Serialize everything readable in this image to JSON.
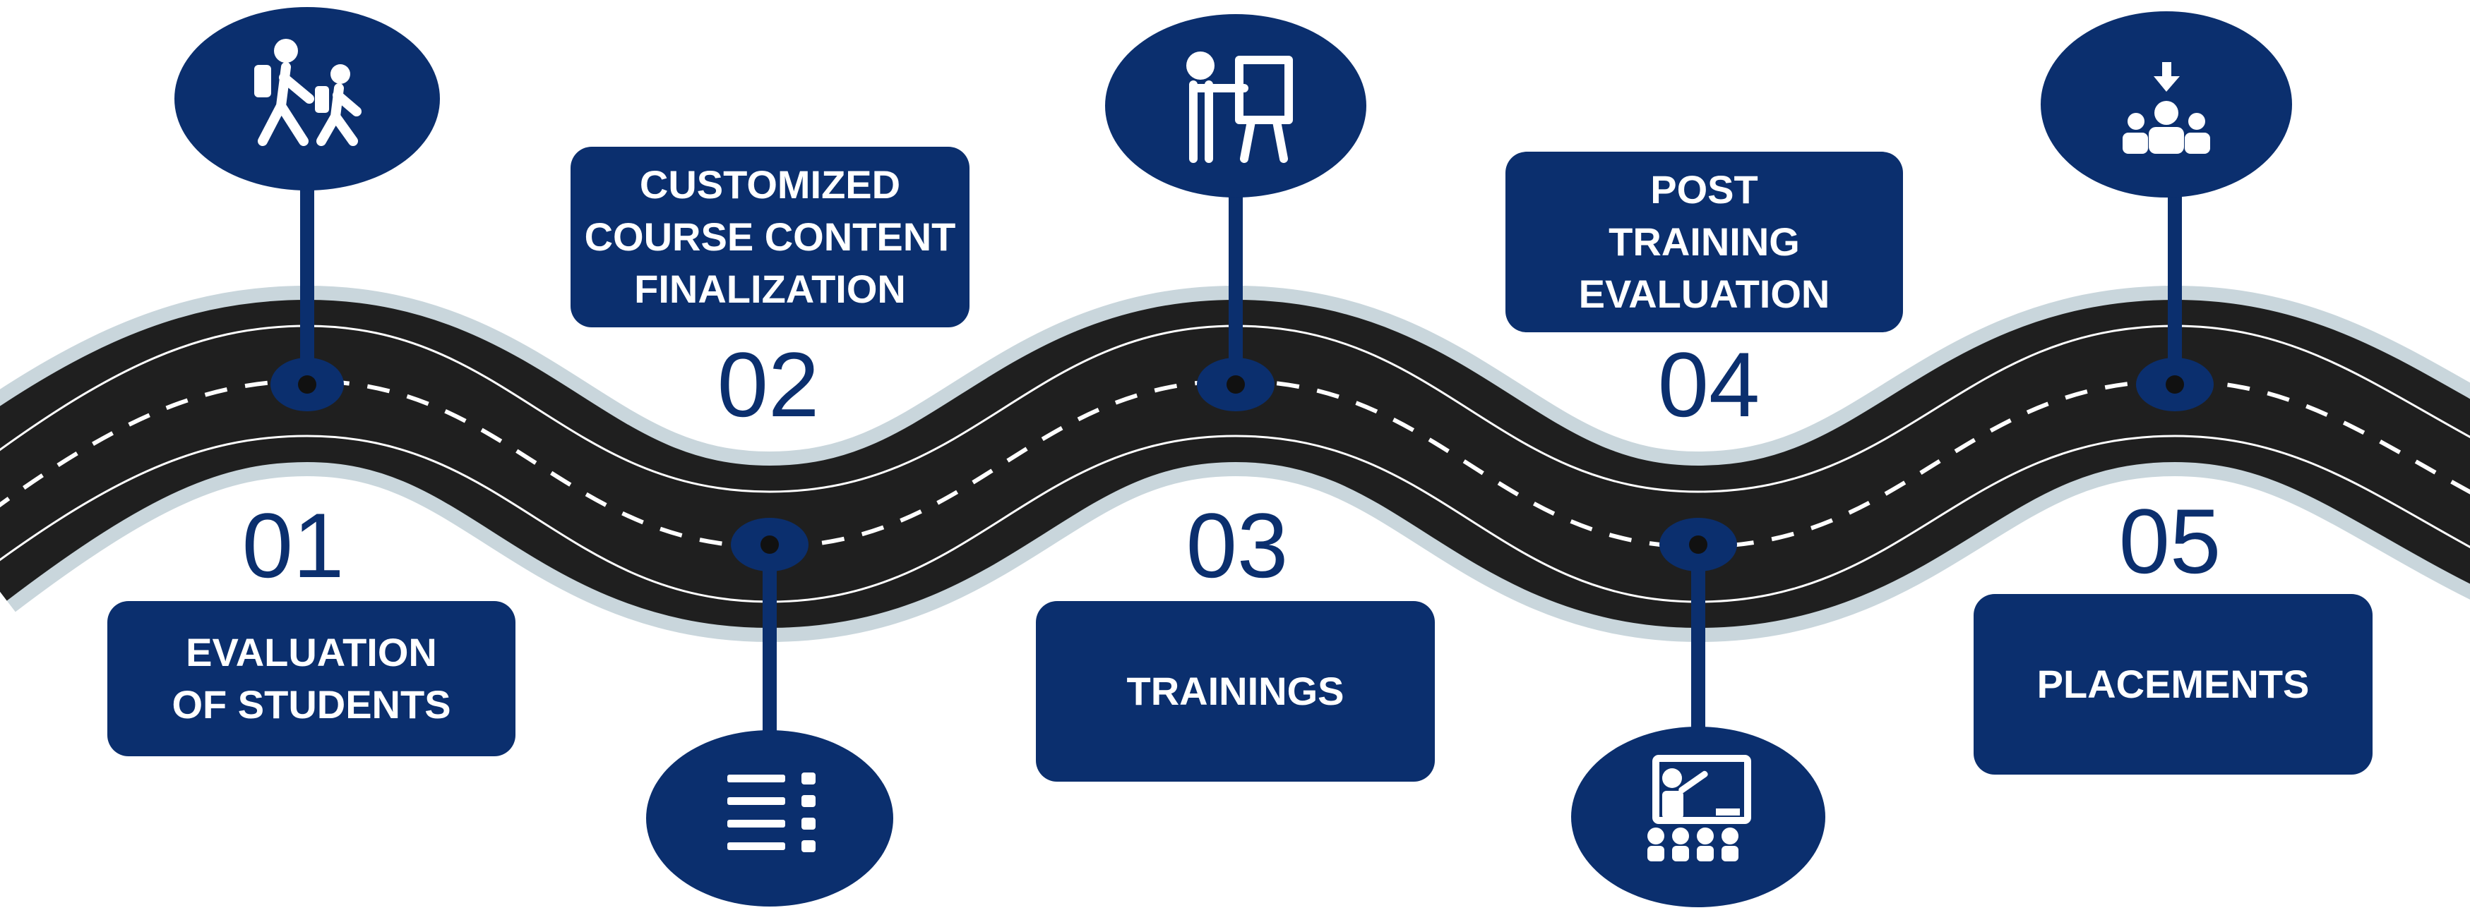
{
  "steps": [
    {
      "number": "01",
      "label": "EVALUATION\nOF STUDENTS",
      "icon": "walking-students-icon"
    },
    {
      "number": "02",
      "label": "CUSTOMIZED\nCOURSE CONTENT\nFINALIZATION",
      "icon": "list-icon"
    },
    {
      "number": "03",
      "label": "TRAININGS",
      "icon": "presentation-board-icon"
    },
    {
      "number": "04",
      "label": "POST\nTRAINING\nEVALUATION",
      "icon": "classroom-icon"
    },
    {
      "number": "05",
      "label": "PLACEMENTS",
      "icon": "placement-group-icon"
    }
  ],
  "colors": {
    "primary": "#0b2f6e",
    "road": "#1f1f1f",
    "road_shadow": "#c9d6dc",
    "text": "#ffffff"
  }
}
